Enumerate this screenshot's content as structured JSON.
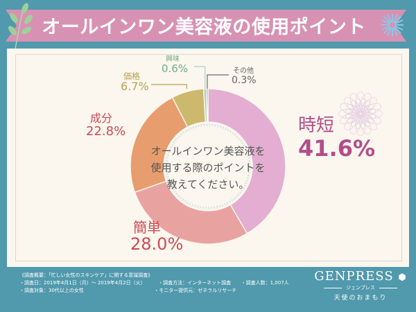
{
  "header": {
    "title": "オールインワン美容液の使用ポイント"
  },
  "chart_data": {
    "type": "pie",
    "subtype": "donut",
    "title": "オールインワン美容液の使用ポイント",
    "center_text": [
      "オールインワン美容液を",
      "使用する際のポイントを",
      "教えてください。"
    ],
    "start_angle_deg": 0,
    "direction": "clockwise",
    "slices": [
      {
        "label": "時短",
        "value": 41.6,
        "display": "41.6%",
        "color": "#e3aed1",
        "label_color": "#b24d8a"
      },
      {
        "label": "簡単",
        "value": 28.0,
        "display": "28.0%",
        "color": "#e8a3a0",
        "label_color": "#cc4a53"
      },
      {
        "label": "成分",
        "value": 22.8,
        "display": "22.8%",
        "color": "#e79d6d",
        "label_color": "#cc4a53"
      },
      {
        "label": "価格",
        "value": 6.7,
        "display": "6.7%",
        "color": "#ccb96e",
        "label_color": "#b8a24e"
      },
      {
        "label": "興味",
        "value": 0.6,
        "display": "0.6%",
        "color": "#a9d3c5",
        "label_color": "#6fae84"
      },
      {
        "label": "その他",
        "value": 0.3,
        "display": "0.3%",
        "color": "#6b6b6b",
        "label_color": "#666666"
      }
    ]
  },
  "footer": {
    "heading": "《調査概要：「忙しい女性のスキンケア」に関する意識調査》",
    "items": [
      "・調査日：2019年4月1日（月）〜 2019年4月2日（火）",
      "・調査方法：インターネット調査",
      "・調査人数：1,007人",
      "・調査対象：30代以上の女性",
      "・モニター提供元：ゼネラルリサーチ"
    ]
  },
  "brand": {
    "logo": "GENPRESS",
    "kana": "ジェンプレス",
    "tagline": "天使のおまもり"
  },
  "colors": {
    "background": "#5199ad",
    "banner": "#d792b3",
    "card": "#fbf6ee"
  }
}
